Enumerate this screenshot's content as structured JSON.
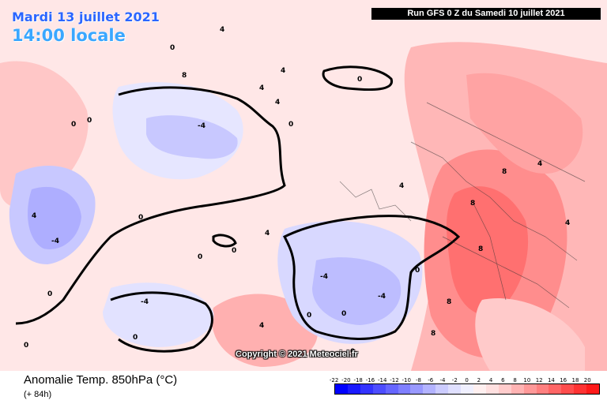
{
  "header": {
    "date": "Mardi 13 juillet 2021",
    "time": "14:00 locale",
    "run": "Run GFS 0 Z du Samedi 10 juillet 2021"
  },
  "copyright": "Copyright © 2021 Meteociel.fr",
  "legend": {
    "title": "Anomalie Temp. 850hPa (°C)",
    "subtitle": "(+ 84h)",
    "ticks": [
      "-22",
      "-20",
      "-18",
      "-16",
      "-14",
      "-12",
      "-10",
      "-8",
      "-6",
      "-4",
      "-2",
      "0",
      "2",
      "4",
      "6",
      "8",
      "10",
      "12",
      "14",
      "16",
      "18",
      "20"
    ],
    "colors": [
      "#0000ff",
      "#1a1aff",
      "#3333ff",
      "#4d4dff",
      "#6666ff",
      "#7f7fff",
      "#9999ff",
      "#b3b3ff",
      "#ccccff",
      "#e0e0ff",
      "#f0f0ff",
      "#fff0f0",
      "#ffe0e0",
      "#ffcccc",
      "#ffb3b3",
      "#ff9999",
      "#ff8080",
      "#ff6666",
      "#ff4d4d",
      "#ff3333",
      "#ff1a1a"
    ]
  },
  "map_labels": [
    "4",
    "0",
    "8",
    "0",
    "4",
    "4",
    "0",
    "0",
    "0",
    "4",
    "4",
    "-4",
    "0",
    "-4",
    "-4",
    "0",
    "0",
    "8",
    "0",
    "0",
    "4",
    "-4",
    "-4",
    "0",
    "0",
    "8",
    "4",
    "8",
    "8",
    "4",
    "4",
    "8",
    "0",
    "0",
    "4",
    "0"
  ]
}
